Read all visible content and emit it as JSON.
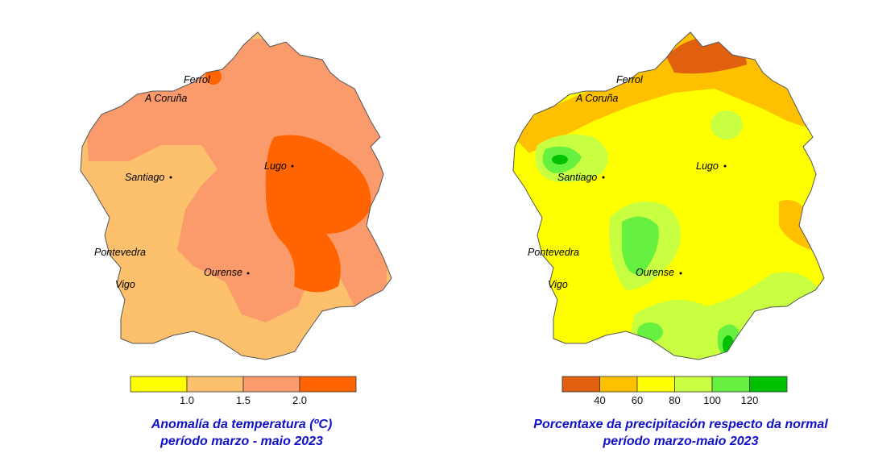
{
  "maps": [
    {
      "title_line1": "Anomalía da temperatura (ºC)",
      "title_line2": "período marzo - maio 2023",
      "legend": {
        "ticks": [
          "1.0",
          "1.5",
          "2.0"
        ],
        "colors": [
          "#ffff00",
          "#fdc06c",
          "#fb9a6a",
          "#ff6400"
        ]
      },
      "cities": [
        "Ferrol",
        "A Coruña",
        "Santiago",
        "Lugo",
        "Pontevedra",
        "Vigo",
        "Ourense"
      ]
    },
    {
      "title_line1": "Porcentaxe da precipitación respecto da normal",
      "title_line2": "período marzo-maio 2023",
      "legend": {
        "ticks": [
          "40",
          "60",
          "80",
          "100",
          "120"
        ],
        "colors": [
          "#e06010",
          "#ffc000",
          "#ffff00",
          "#c8ff40",
          "#66f040",
          "#00c000"
        ]
      },
      "cities": [
        "Ferrol",
        "A Coruña",
        "Santiago",
        "Lugo",
        "Pontevedra",
        "Vigo",
        "Ourense"
      ]
    }
  ]
}
